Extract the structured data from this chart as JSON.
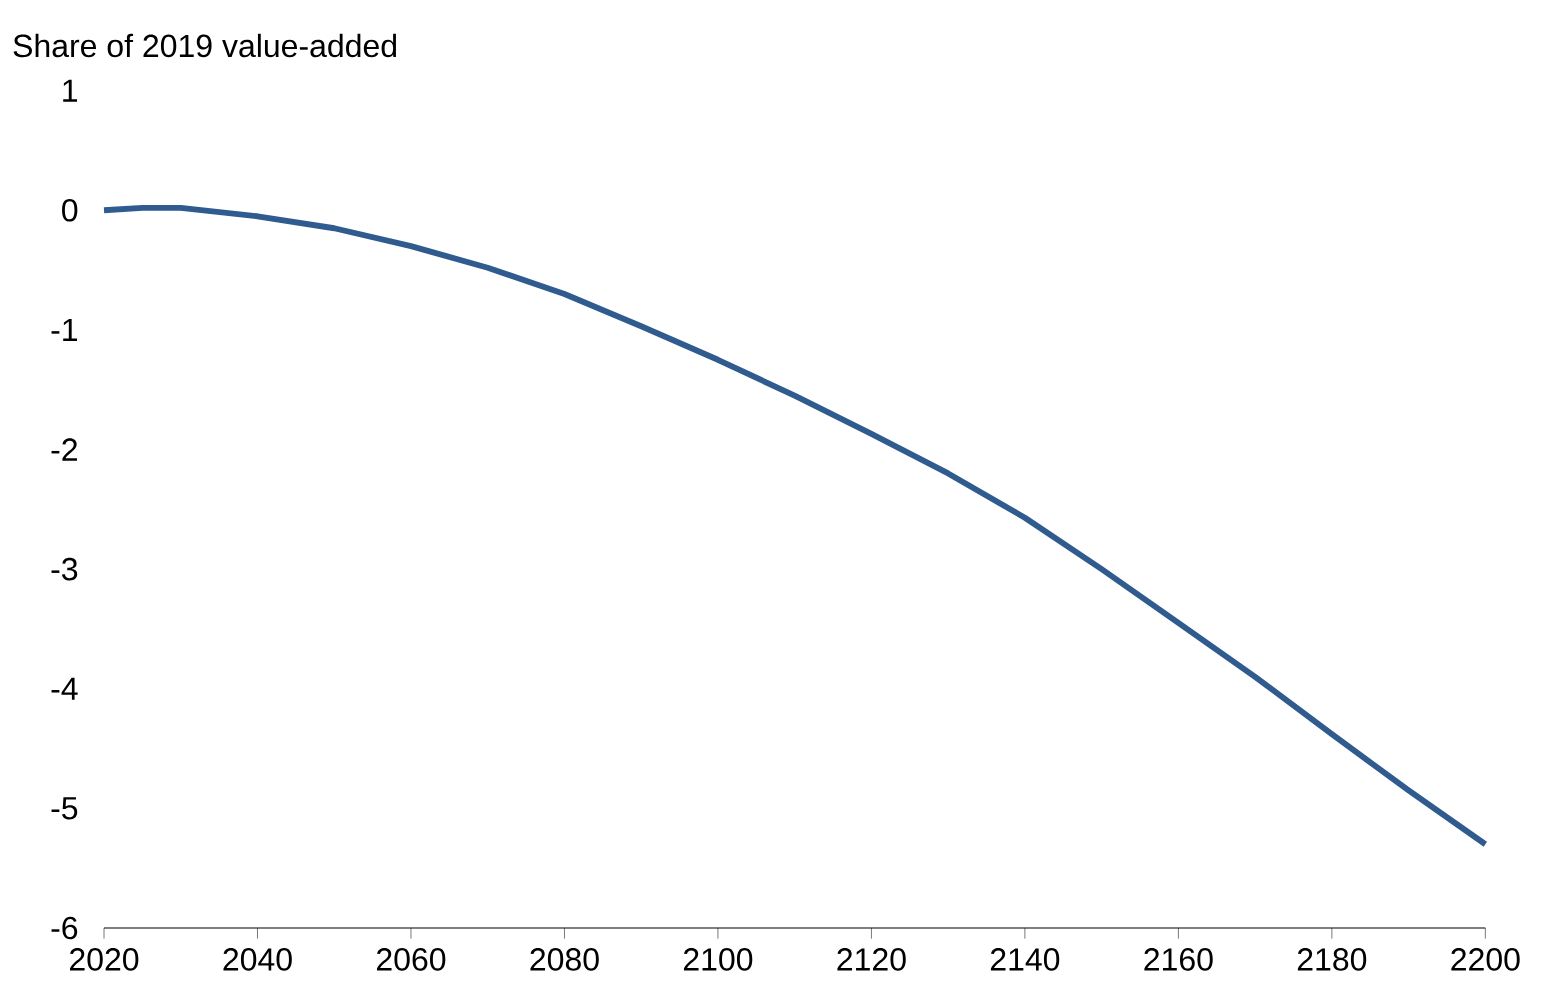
{
  "chart_data": {
    "type": "line",
    "ylabel": "Share of 2019 value-added",
    "x": [
      2020,
      2025,
      2030,
      2040,
      2050,
      2060,
      2070,
      2080,
      2090,
      2100,
      2110,
      2120,
      2130,
      2140,
      2150,
      2160,
      2170,
      2180,
      2190,
      2200
    ],
    "series": [
      {
        "color": "#2f5b8e",
        "values": [
          0.0,
          0.02,
          0.02,
          -0.05,
          -0.15,
          -0.3,
          -0.48,
          -0.7,
          -0.97,
          -1.25,
          -1.55,
          -1.87,
          -2.2,
          -2.57,
          -3.0,
          -3.45,
          -3.9,
          -4.38,
          -4.85,
          -5.3
        ]
      }
    ],
    "xlim": [
      2020,
      2200
    ],
    "xticks": [
      2020,
      2040,
      2060,
      2080,
      2100,
      2120,
      2140,
      2160,
      2180,
      2200
    ],
    "ylim": [
      -6,
      1
    ],
    "yticks": [
      -6,
      -5,
      -4,
      -3,
      -2,
      -1,
      0,
      1
    ],
    "grid": false,
    "marker": "none",
    "line_style": "solid"
  }
}
